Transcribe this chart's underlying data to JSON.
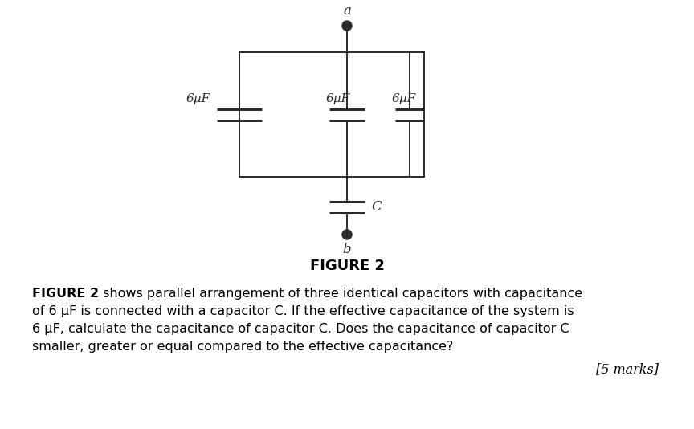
{
  "fig_width": 8.64,
  "fig_height": 5.34,
  "bg_color": "#ffffff",
  "line_color": "#2b2b2b",
  "line_width": 1.4,
  "figure_label": "FIGURE 2",
  "node_a_label": "a",
  "node_b_label": "b",
  "cap_c_label": "C",
  "cap_labels": [
    "6μF",
    "6μF",
    "6μF"
  ],
  "bold_text": "FIGURE 2",
  "normal_text": " shows parallel arrangement of three identical capacitors with capacitance",
  "line2": "of 6 μF is connected with a capacitor C. If the effective capacitance of the system is",
  "line3": "6 μF, calculate the capacitance of capacitor C. Does the capacitance of capacitor C",
  "line4": "smaller, greater or equal compared to the effective capacitance?",
  "marks_text": "[5 marks]"
}
